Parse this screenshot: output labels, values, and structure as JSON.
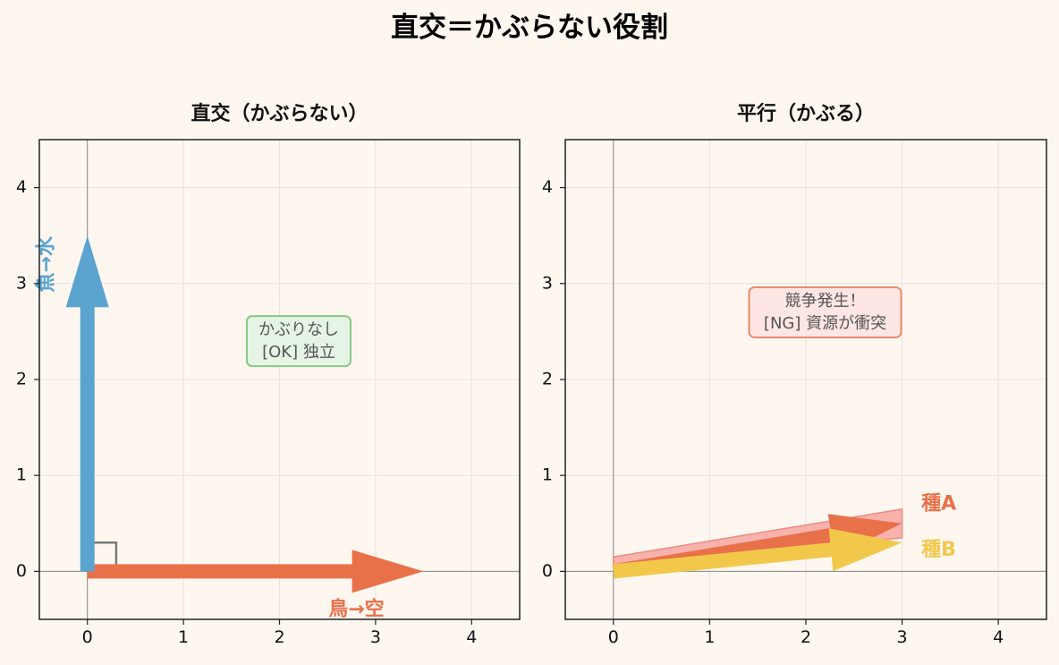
{
  "suptitle": "直交＝かぶらない役割",
  "chart_data": [
    {
      "type": "vector",
      "title": "直交（かぶらない）",
      "xlim": [
        -0.5,
        4.5
      ],
      "ylim": [
        -0.5,
        4.5
      ],
      "xticks": [
        0,
        1,
        2,
        3,
        4
      ],
      "yticks": [
        0,
        1,
        2,
        3,
        4
      ],
      "grid": true,
      "vectors": [
        {
          "name": "鳥→空",
          "from": [
            0,
            0
          ],
          "to": [
            3.5,
            0
          ],
          "color": "#e8714a"
        },
        {
          "name": "魚→水",
          "from": [
            0,
            0
          ],
          "to": [
            0,
            3.5
          ],
          "color": "#5ba4d0"
        }
      ],
      "right_angle_marker": true,
      "annotation": {
        "lines": [
          "かぶりなし",
          "[OK] 独立"
        ],
        "at": [
          2.2,
          2.4
        ],
        "face": "#e6f4e6",
        "edge": "#86c886"
      }
    },
    {
      "type": "vector",
      "title": "平行（かぶる）",
      "xlim": [
        -0.5,
        4.5
      ],
      "ylim": [
        -0.5,
        4.5
      ],
      "xticks": [
        0,
        1,
        2,
        3,
        4
      ],
      "yticks": [
        0,
        1,
        2,
        3,
        4
      ],
      "grid": true,
      "vectors": [
        {
          "name": "種A",
          "from": [
            0,
            0
          ],
          "to": [
            3,
            0.5
          ],
          "color": "#e8714a"
        },
        {
          "name": "種B",
          "from": [
            0,
            0
          ],
          "to": [
            3,
            0.3
          ],
          "color": "#f2c84b"
        }
      ],
      "overlap_band": {
        "x": [
          0,
          3
        ],
        "y_lower": [
          0.05,
          0.35
        ],
        "y_upper": [
          0.15,
          0.65
        ],
        "face": "#f7a6a0",
        "edge": "#ee8a84"
      },
      "annotation": {
        "lines": [
          "競争発生！",
          "[NG] 資源が衝突"
        ],
        "at": [
          2.2,
          2.7
        ],
        "face": "#fde6e3",
        "edge": "#ec8a6c"
      }
    }
  ]
}
